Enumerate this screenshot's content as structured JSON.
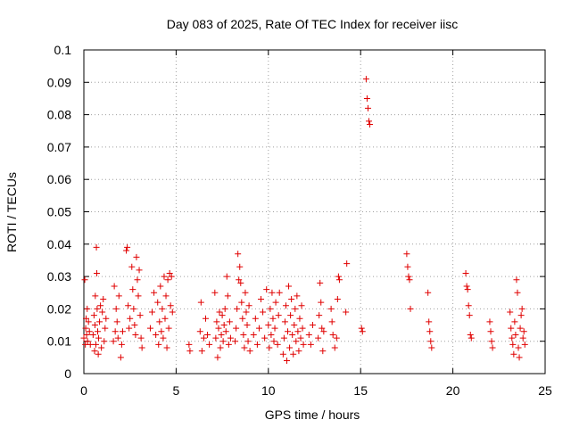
{
  "chart_data": {
    "type": "scatter",
    "title": "Day 083 of 2025, Rate Of TEC Index for receiver iisc",
    "xlabel": "GPS time / hours",
    "ylabel": "ROTI / TECUs",
    "xlim": [
      0,
      25
    ],
    "ylim": [
      0,
      0.1
    ],
    "xticks": [
      0,
      5,
      10,
      15,
      20,
      25
    ],
    "xtick_labels": [
      "0",
      "5",
      "10",
      "15",
      "20",
      "25"
    ],
    "yticks": [
      0,
      0.01,
      0.02,
      0.03,
      0.04,
      0.05,
      0.06,
      0.07,
      0.08,
      0.09,
      0.1
    ],
    "ytick_labels": [
      "0",
      "0.01",
      "0.02",
      "0.03",
      "0.04",
      "0.05",
      "0.06",
      "0.07",
      "0.08",
      "0.09",
      "0.1"
    ],
    "grid": true,
    "legend": false,
    "marker": "+",
    "color": "#e00000",
    "series": [
      {
        "values": [
          [
            0.0,
            0.011
          ],
          [
            0.05,
            0.029
          ],
          [
            0.08,
            0.009
          ],
          [
            0.1,
            0.014
          ],
          [
            0.12,
            0.017
          ],
          [
            0.15,
            0.012
          ],
          [
            0.18,
            0.02
          ],
          [
            0.2,
            0.01
          ],
          [
            0.25,
            0.016
          ],
          [
            0.3,
            0.013
          ],
          [
            0.35,
            0.009
          ],
          [
            0.5,
            0.012
          ],
          [
            0.55,
            0.018
          ],
          [
            0.58,
            0.007
          ],
          [
            0.6,
            0.015
          ],
          [
            0.62,
            0.024
          ],
          [
            0.65,
            0.009
          ],
          [
            0.68,
            0.039
          ],
          [
            0.7,
            0.031
          ],
          [
            0.72,
            0.02
          ],
          [
            0.75,
            0.013
          ],
          [
            0.78,
            0.006
          ],
          [
            0.8,
            0.011
          ],
          [
            0.85,
            0.016
          ],
          [
            0.9,
            0.021
          ],
          [
            0.95,
            0.008
          ],
          [
            1.0,
            0.019
          ],
          [
            1.05,
            0.023
          ],
          [
            1.1,
            0.01
          ],
          [
            1.15,
            0.014
          ],
          [
            1.2,
            0.017
          ],
          [
            1.6,
            0.01
          ],
          [
            1.65,
            0.027
          ],
          [
            1.7,
            0.013
          ],
          [
            1.75,
            0.02
          ],
          [
            1.8,
            0.016
          ],
          [
            1.85,
            0.011
          ],
          [
            1.9,
            0.024
          ],
          [
            2.0,
            0.005
          ],
          [
            2.05,
            0.009
          ],
          [
            2.1,
            0.013
          ],
          [
            2.3,
            0.038
          ],
          [
            2.35,
            0.039
          ],
          [
            2.4,
            0.021
          ],
          [
            2.45,
            0.014
          ],
          [
            2.5,
            0.017
          ],
          [
            2.6,
            0.033
          ],
          [
            2.65,
            0.026
          ],
          [
            2.7,
            0.02
          ],
          [
            2.75,
            0.015
          ],
          [
            2.8,
            0.012
          ],
          [
            2.85,
            0.036
          ],
          [
            2.9,
            0.029
          ],
          [
            2.95,
            0.024
          ],
          [
            3.0,
            0.032
          ],
          [
            3.05,
            0.018
          ],
          [
            3.1,
            0.011
          ],
          [
            3.15,
            0.008
          ],
          [
            3.6,
            0.014
          ],
          [
            3.7,
            0.019
          ],
          [
            3.8,
            0.025
          ],
          [
            3.9,
            0.012
          ],
          [
            4.0,
            0.022
          ],
          [
            4.05,
            0.009
          ],
          [
            4.1,
            0.016
          ],
          [
            4.15,
            0.027
          ],
          [
            4.2,
            0.013
          ],
          [
            4.25,
            0.02
          ],
          [
            4.3,
            0.011
          ],
          [
            4.35,
            0.03
          ],
          [
            4.4,
            0.017
          ],
          [
            4.45,
            0.024
          ],
          [
            4.5,
            0.008
          ],
          [
            4.55,
            0.029
          ],
          [
            4.6,
            0.014
          ],
          [
            4.65,
            0.031
          ],
          [
            4.7,
            0.021
          ],
          [
            4.75,
            0.03
          ],
          [
            4.8,
            0.019
          ],
          [
            5.7,
            0.009
          ],
          [
            5.75,
            0.007
          ],
          [
            6.3,
            0.013
          ],
          [
            6.35,
            0.022
          ],
          [
            6.4,
            0.007
          ],
          [
            6.5,
            0.011
          ],
          [
            6.6,
            0.017
          ],
          [
            6.7,
            0.012
          ],
          [
            6.8,
            0.009
          ],
          [
            7.1,
            0.025
          ],
          [
            7.15,
            0.011
          ],
          [
            7.2,
            0.016
          ],
          [
            7.25,
            0.005
          ],
          [
            7.3,
            0.014
          ],
          [
            7.35,
            0.019
          ],
          [
            7.4,
            0.008
          ],
          [
            7.45,
            0.012
          ],
          [
            7.5,
            0.018
          ],
          [
            7.55,
            0.01
          ],
          [
            7.6,
            0.015
          ],
          [
            7.65,
            0.02
          ],
          [
            7.7,
            0.013
          ],
          [
            7.75,
            0.03
          ],
          [
            7.8,
            0.024
          ],
          [
            7.85,
            0.009
          ],
          [
            7.9,
            0.016
          ],
          [
            7.95,
            0.011
          ],
          [
            8.2,
            0.01
          ],
          [
            8.25,
            0.014
          ],
          [
            8.3,
            0.02
          ],
          [
            8.35,
            0.037
          ],
          [
            8.4,
            0.029
          ],
          [
            8.45,
            0.033
          ],
          [
            8.5,
            0.028
          ],
          [
            8.55,
            0.022
          ],
          [
            8.6,
            0.017
          ],
          [
            8.65,
            0.012
          ],
          [
            8.7,
            0.008
          ],
          [
            8.75,
            0.025
          ],
          [
            8.8,
            0.019
          ],
          [
            8.85,
            0.015
          ],
          [
            8.9,
            0.01
          ],
          [
            8.95,
            0.021
          ],
          [
            9.0,
            0.007
          ],
          [
            9.2,
            0.012
          ],
          [
            9.3,
            0.017
          ],
          [
            9.4,
            0.009
          ],
          [
            9.5,
            0.014
          ],
          [
            9.6,
            0.023
          ],
          [
            9.7,
            0.019
          ],
          [
            9.8,
            0.011
          ],
          [
            9.9,
            0.026
          ],
          [
            10.0,
            0.015
          ],
          [
            10.05,
            0.008
          ],
          [
            10.1,
            0.02
          ],
          [
            10.15,
            0.012
          ],
          [
            10.2,
            0.025
          ],
          [
            10.25,
            0.017
          ],
          [
            10.3,
            0.01
          ],
          [
            10.35,
            0.014
          ],
          [
            10.4,
            0.022
          ],
          [
            10.5,
            0.009
          ],
          [
            10.55,
            0.018
          ],
          [
            10.6,
            0.025
          ],
          [
            10.8,
            0.006
          ],
          [
            10.85,
            0.011
          ],
          [
            10.9,
            0.016
          ],
          [
            10.95,
            0.021
          ],
          [
            11.0,
            0.004
          ],
          [
            11.05,
            0.013
          ],
          [
            11.1,
            0.027
          ],
          [
            11.15,
            0.008
          ],
          [
            11.2,
            0.018
          ],
          [
            11.25,
            0.023
          ],
          [
            11.3,
            0.012
          ],
          [
            11.35,
            0.006
          ],
          [
            11.4,
            0.015
          ],
          [
            11.45,
            0.02
          ],
          [
            11.5,
            0.01
          ],
          [
            11.55,
            0.024
          ],
          [
            11.6,
            0.013
          ],
          [
            11.65,
            0.007
          ],
          [
            11.7,
            0.017
          ],
          [
            11.75,
            0.011
          ],
          [
            11.8,
            0.021
          ],
          [
            11.85,
            0.014
          ],
          [
            11.9,
            0.009
          ],
          [
            12.2,
            0.012
          ],
          [
            12.3,
            0.009
          ],
          [
            12.4,
            0.015
          ],
          [
            12.7,
            0.011
          ],
          [
            12.75,
            0.018
          ],
          [
            12.8,
            0.028
          ],
          [
            12.85,
            0.022
          ],
          [
            12.9,
            0.014
          ],
          [
            12.95,
            0.007
          ],
          [
            13.0,
            0.013
          ],
          [
            13.4,
            0.02
          ],
          [
            13.45,
            0.016
          ],
          [
            13.5,
            0.012
          ],
          [
            13.6,
            0.008
          ],
          [
            13.7,
            0.011
          ],
          [
            13.75,
            0.023
          ],
          [
            13.8,
            0.03
          ],
          [
            13.85,
            0.029
          ],
          [
            14.2,
            0.019
          ],
          [
            14.25,
            0.034
          ],
          [
            15.05,
            0.014
          ],
          [
            15.1,
            0.013
          ],
          [
            15.3,
            0.091
          ],
          [
            15.35,
            0.085
          ],
          [
            15.4,
            0.082
          ],
          [
            15.45,
            0.078
          ],
          [
            15.5,
            0.077
          ],
          [
            17.5,
            0.037
          ],
          [
            17.55,
            0.033
          ],
          [
            17.6,
            0.03
          ],
          [
            17.65,
            0.029
          ],
          [
            17.7,
            0.02
          ],
          [
            18.65,
            0.025
          ],
          [
            18.7,
            0.016
          ],
          [
            18.75,
            0.013
          ],
          [
            18.8,
            0.01
          ],
          [
            18.85,
            0.008
          ],
          [
            20.7,
            0.031
          ],
          [
            20.75,
            0.027
          ],
          [
            20.8,
            0.026
          ],
          [
            20.85,
            0.021
          ],
          [
            20.9,
            0.018
          ],
          [
            20.95,
            0.012
          ],
          [
            21.0,
            0.011
          ],
          [
            22.0,
            0.016
          ],
          [
            22.05,
            0.013
          ],
          [
            22.1,
            0.01
          ],
          [
            22.15,
            0.008
          ],
          [
            23.1,
            0.019
          ],
          [
            23.15,
            0.014
          ],
          [
            23.2,
            0.011
          ],
          [
            23.25,
            0.009
          ],
          [
            23.3,
            0.006
          ],
          [
            23.35,
            0.016
          ],
          [
            23.4,
            0.012
          ],
          [
            23.45,
            0.029
          ],
          [
            23.5,
            0.025
          ],
          [
            23.55,
            0.008
          ],
          [
            23.6,
            0.005
          ],
          [
            23.65,
            0.014
          ],
          [
            23.7,
            0.018
          ],
          [
            23.75,
            0.02
          ],
          [
            23.8,
            0.011
          ],
          [
            23.85,
            0.013
          ],
          [
            23.9,
            0.009
          ]
        ]
      }
    ]
  }
}
